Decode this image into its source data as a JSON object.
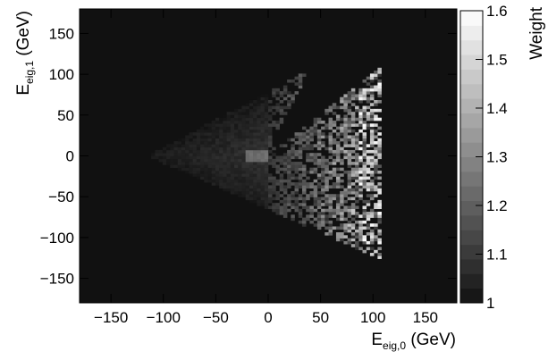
{
  "chart_data": {
    "type": "heatmap",
    "title": "",
    "xlabel": {
      "main": "E",
      "sub": "eig,0",
      "unit": " (GeV)"
    },
    "ylabel": {
      "main": "E",
      "sub": "eig,1",
      "unit": " (GeV)"
    },
    "colorbar_label": "Weight",
    "xlim": [
      -180,
      180
    ],
    "ylim": [
      -180,
      180
    ],
    "x_ticks": [
      -150,
      -100,
      -50,
      0,
      50,
      100,
      150
    ],
    "y_ticks": [
      -150,
      -100,
      -50,
      0,
      50,
      100,
      150
    ],
    "x_tick_labels": [
      "−150",
      "−100",
      "−50",
      "0",
      "50",
      "100",
      "150"
    ],
    "y_tick_labels": [
      "−150",
      "−100",
      "−50",
      "0",
      "50",
      "100",
      "150"
    ],
    "color_range": [
      1.0,
      1.6
    ],
    "colorbar_ticks": [
      1.0,
      1.1,
      1.2,
      1.3,
      1.4,
      1.5,
      1.6
    ],
    "colorbar_tick_labels": [
      "1",
      "1.1",
      "1.2",
      "1.3",
      "1.4",
      "1.5",
      "1.6"
    ],
    "colormap": "grayscale",
    "background_color": "#111111",
    "bins": 100,
    "description_of_distribution": "Triangular region with apex near x=-110,y=0; upper edge to (90,140), lower edge to (105,-125); inner notch from (0,0) to (40,100); brightest pixels near right edge (x 80-105)."
  }
}
